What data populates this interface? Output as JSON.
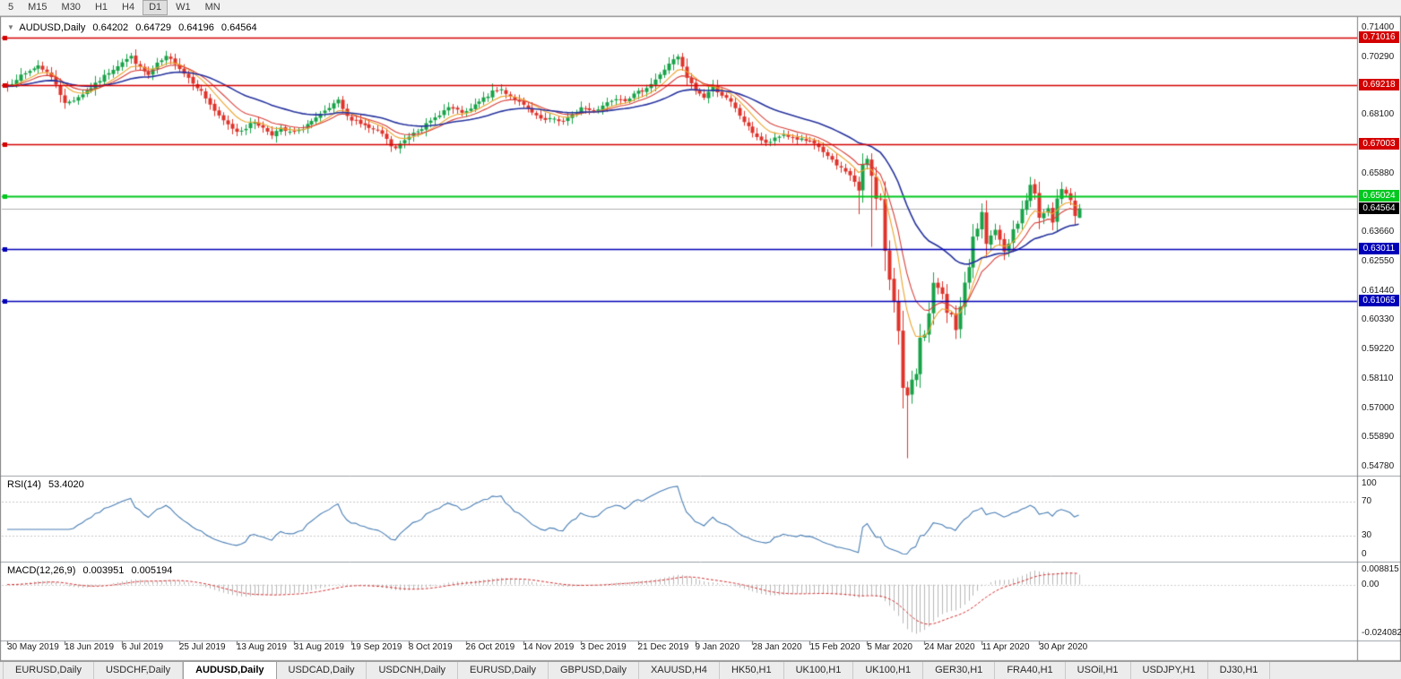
{
  "toolbar": {
    "timeframes": [
      {
        "label": "5",
        "active": false
      },
      {
        "label": "M15",
        "active": false
      },
      {
        "label": "M30",
        "active": false
      },
      {
        "label": "H1",
        "active": false
      },
      {
        "label": "H4",
        "active": false
      },
      {
        "label": "D1",
        "active": true
      },
      {
        "label": "W1",
        "active": false
      },
      {
        "label": "MN",
        "active": false
      }
    ]
  },
  "chart": {
    "collapse_icon": "▼",
    "symbol_title": "AUDUSD,Daily",
    "ohlc": {
      "open": "0.64202",
      "high": "0.64729",
      "low": "0.64196",
      "close": "0.64564"
    }
  },
  "price_axis": {
    "grid_labels": [
      {
        "text": "0.71400",
        "value": 0.714
      },
      {
        "text": "0.70290",
        "value": 0.7029
      },
      {
        "text": "0.68100",
        "value": 0.681
      },
      {
        "text": "0.65880",
        "value": 0.6588
      },
      {
        "text": "0.63660",
        "value": 0.6366
      },
      {
        "text": "0.62550",
        "value": 0.6255
      },
      {
        "text": "0.61440",
        "value": 0.6144
      },
      {
        "text": "0.60330",
        "value": 0.6033
      },
      {
        "text": "0.59220",
        "value": 0.5922
      },
      {
        "text": "0.58110",
        "value": 0.5811
      },
      {
        "text": "0.57000",
        "value": 0.57
      },
      {
        "text": "0.55890",
        "value": 0.5589
      },
      {
        "text": "0.54780",
        "value": 0.5478
      }
    ],
    "line_badges": [
      {
        "text": "0.71016",
        "value": 0.71016,
        "color": "#d40000"
      },
      {
        "text": "0.69218",
        "value": 0.69218,
        "color": "#d40000"
      },
      {
        "text": "0.67003",
        "value": 0.67003,
        "color": "#d40000"
      },
      {
        "text": "0.65024",
        "value": 0.65024,
        "color": "#00c81e"
      },
      {
        "text": "0.63011",
        "value": 0.63011,
        "color": "#0000b8"
      },
      {
        "text": "0.61065",
        "value": 0.61065,
        "color": "#0000b8"
      }
    ],
    "current": {
      "text": "0.64564",
      "value": 0.64564,
      "color": "#000000"
    }
  },
  "rsi_panel": {
    "title": "RSI(14)",
    "value": "53.4020",
    "axis_labels": [
      {
        "text": "100",
        "value": 100
      },
      {
        "text": "70",
        "value": 70
      },
      {
        "text": "30",
        "value": 30
      },
      {
        "text": "0",
        "value": 0
      }
    ]
  },
  "macd_panel": {
    "title": "MACD(12,26,9)",
    "main_value": "0.003951",
    "signal_value": "0.005194",
    "axis_labels": [
      {
        "text": "0.008815",
        "value": 0.008815
      },
      {
        "text": "0.00",
        "value": 0
      },
      {
        "text": "-0.024082",
        "value": -0.024082
      }
    ]
  },
  "date_axis": {
    "labels": [
      "30 May 2019",
      "18 Jun 2019",
      "6 Jul 2019",
      "25 Jul 2019",
      "13 Aug 2019",
      "31 Aug 2019",
      "19 Sep 2019",
      "8 Oct 2019",
      "26 Oct 2019",
      "14 Nov 2019",
      "3 Dec 2019",
      "21 Dec 2019",
      "9 Jan 2020",
      "28 Jan 2020",
      "15 Feb 2020",
      "5 Mar 2020",
      "24 Mar 2020",
      "11 Apr 2020",
      "30 Apr 2020"
    ]
  },
  "tabs": [
    {
      "label": "EURUSD,Daily",
      "active": false
    },
    {
      "label": "USDCHF,Daily",
      "active": false
    },
    {
      "label": "AUDUSD,Daily",
      "active": true
    },
    {
      "label": "USDCAD,Daily",
      "active": false
    },
    {
      "label": "USDCNH,Daily",
      "active": false
    },
    {
      "label": "EURUSD,Daily",
      "active": false
    },
    {
      "label": "GBPUSD,Daily",
      "active": false
    },
    {
      "label": "XAUUSD,H4",
      "active": false
    },
    {
      "label": "HK50,H1",
      "active": false
    },
    {
      "label": "UK100,H1",
      "active": false
    },
    {
      "label": "UK100,H1",
      "active": false
    },
    {
      "label": "GER30,H1",
      "active": false
    },
    {
      "label": "FRA40,H1",
      "active": false
    },
    {
      "label": "USOil,H1",
      "active": false
    },
    {
      "label": "USDJPY,H1",
      "active": false
    },
    {
      "label": "DJ30,H1",
      "active": false
    }
  ],
  "chart_data": {
    "type": "candlestick",
    "symbol": "AUDUSD",
    "timeframe": "Daily",
    "count": 244,
    "x_label_step": 13,
    "seed": 7,
    "noise": 0.0013,
    "rsi_period": 14,
    "macd_periods": [
      12,
      26,
      9
    ],
    "ma_periods": {
      "fast": 8,
      "mid": 13,
      "slow": 34
    },
    "current_price": 0.64564,
    "last_candle": {
      "open": 0.64202,
      "high": 0.64729,
      "low": 0.64196,
      "close": 0.64564
    },
    "close_anchors": [
      [
        0,
        0.6918
      ],
      [
        2,
        0.6948
      ],
      [
        4,
        0.6965
      ],
      [
        7,
        0.6998
      ],
      [
        9,
        0.6972
      ],
      [
        11,
        0.6928
      ],
      [
        13,
        0.6852
      ],
      [
        15,
        0.6868
      ],
      [
        17,
        0.689
      ],
      [
        20,
        0.6926
      ],
      [
        23,
        0.6972
      ],
      [
        26,
        0.7012
      ],
      [
        28,
        0.703
      ],
      [
        30,
        0.6988
      ],
      [
        32,
        0.696
      ],
      [
        34,
        0.7002
      ],
      [
        36,
        0.7028
      ],
      [
        38,
        0.7008
      ],
      [
        40,
        0.6968
      ],
      [
        42,
        0.6935
      ],
      [
        44,
        0.6898
      ],
      [
        46,
        0.685
      ],
      [
        48,
        0.6802
      ],
      [
        50,
        0.6772
      ],
      [
        52,
        0.6748
      ],
      [
        54,
        0.6762
      ],
      [
        56,
        0.6786
      ],
      [
        58,
        0.676
      ],
      [
        60,
        0.6738
      ],
      [
        62,
        0.6756
      ],
      [
        64,
        0.6742
      ],
      [
        66,
        0.6748
      ],
      [
        68,
        0.6775
      ],
      [
        70,
        0.6795
      ],
      [
        72,
        0.6822
      ],
      [
        74,
        0.6848
      ],
      [
        75,
        0.6862
      ],
      [
        77,
        0.6802
      ],
      [
        79,
        0.6788
      ],
      [
        81,
        0.6768
      ],
      [
        83,
        0.6752
      ],
      [
        85,
        0.6738
      ],
      [
        87,
        0.6692
      ],
      [
        88,
        0.6682
      ],
      [
        90,
        0.6714
      ],
      [
        92,
        0.6746
      ],
      [
        94,
        0.6762
      ],
      [
        96,
        0.6784
      ],
      [
        98,
        0.6814
      ],
      [
        100,
        0.6838
      ],
      [
        102,
        0.6824
      ],
      [
        104,
        0.6818
      ],
      [
        106,
        0.6846
      ],
      [
        108,
        0.6872
      ],
      [
        110,
        0.6896
      ],
      [
        112,
        0.6906
      ],
      [
        114,
        0.6882
      ],
      [
        116,
        0.6856
      ],
      [
        118,
        0.6832
      ],
      [
        120,
        0.6802
      ],
      [
        122,
        0.6788
      ],
      [
        124,
        0.6796
      ],
      [
        126,
        0.6784
      ],
      [
        128,
        0.6808
      ],
      [
        130,
        0.6838
      ],
      [
        132,
        0.6828
      ],
      [
        134,
        0.6834
      ],
      [
        136,
        0.6858
      ],
      [
        138,
        0.6876
      ],
      [
        140,
        0.6868
      ],
      [
        142,
        0.6886
      ],
      [
        144,
        0.6904
      ],
      [
        146,
        0.6928
      ],
      [
        148,
        0.696
      ],
      [
        150,
        0.7006
      ],
      [
        152,
        0.7028
      ],
      [
        154,
        0.695
      ],
      [
        156,
        0.6902
      ],
      [
        158,
        0.6878
      ],
      [
        160,
        0.6916
      ],
      [
        162,
        0.6886
      ],
      [
        164,
        0.6856
      ],
      [
        166,
        0.6808
      ],
      [
        168,
        0.6762
      ],
      [
        170,
        0.6728
      ],
      [
        172,
        0.67
      ],
      [
        174,
        0.6718
      ],
      [
        176,
        0.6736
      ],
      [
        178,
        0.6722
      ],
      [
        180,
        0.6716
      ],
      [
        182,
        0.6706
      ],
      [
        184,
        0.6688
      ],
      [
        186,
        0.6652
      ],
      [
        188,
        0.6618
      ],
      [
        190,
        0.66
      ],
      [
        192,
        0.6558
      ],
      [
        193,
        0.6522
      ],
      [
        194,
        0.6618
      ],
      [
        195,
        0.6645
      ],
      [
        196,
        0.6582
      ],
      [
        197,
        0.6498
      ],
      [
        198,
        0.6488
      ],
      [
        199,
        0.6292
      ],
      [
        200,
        0.618
      ],
      [
        201,
        0.6105
      ],
      [
        202,
        0.5995
      ],
      [
        203,
        0.5782
      ],
      [
        204,
        0.5745
      ],
      [
        205,
        0.5802
      ],
      [
        206,
        0.5825
      ],
      [
        207,
        0.5962
      ],
      [
        208,
        0.5972
      ],
      [
        209,
        0.6062
      ],
      [
        210,
        0.6168
      ],
      [
        211,
        0.6158
      ],
      [
        212,
        0.6132
      ],
      [
        213,
        0.6062
      ],
      [
        214,
        0.6052
      ],
      [
        215,
        0.5992
      ],
      [
        216,
        0.6082
      ],
      [
        217,
        0.6172
      ],
      [
        218,
        0.6232
      ],
      [
        219,
        0.6348
      ],
      [
        220,
        0.6382
      ],
      [
        221,
        0.6438
      ],
      [
        222,
        0.6322
      ],
      [
        223,
        0.6358
      ],
      [
        224,
        0.6372
      ],
      [
        225,
        0.6338
      ],
      [
        226,
        0.6292
      ],
      [
        227,
        0.6322
      ],
      [
        228,
        0.6372
      ],
      [
        229,
        0.6392
      ],
      [
        230,
        0.6458
      ],
      [
        231,
        0.6492
      ],
      [
        232,
        0.6548
      ],
      [
        233,
        0.6512
      ],
      [
        234,
        0.6422
      ],
      [
        235,
        0.6432
      ],
      [
        236,
        0.6452
      ],
      [
        237,
        0.6402
      ],
      [
        238,
        0.6488
      ],
      [
        239,
        0.6532
      ],
      [
        240,
        0.6512
      ],
      [
        241,
        0.6482
      ],
      [
        242,
        0.6425
      ],
      [
        243,
        0.64564
      ]
    ],
    "overrides": {
      "28": {
        "high": 0.7045
      },
      "87": {
        "low": 0.667
      },
      "152": {
        "high": 0.704
      },
      "193": {
        "low": 0.6434
      },
      "196": {
        "low": 0.631
      },
      "204": {
        "low": 0.551
      },
      "243": {
        "open": 0.64202,
        "high": 0.64729,
        "low": 0.64196,
        "close": 0.64564
      }
    },
    "colors": {
      "up": "#18a348",
      "down": "#df332b",
      "ma_fast": "#eda42c",
      "ma_mid": "#d8403a",
      "ma_slow": "#26339e",
      "rsi": "#4a7fb5",
      "macd_hist": "#b8b8b8",
      "macd_signal": "#d63031",
      "hline_red": "#d40000",
      "hline_green": "#00c81e",
      "hline_blue": "#0000b8",
      "current_line": "#b0b0b0"
    }
  }
}
